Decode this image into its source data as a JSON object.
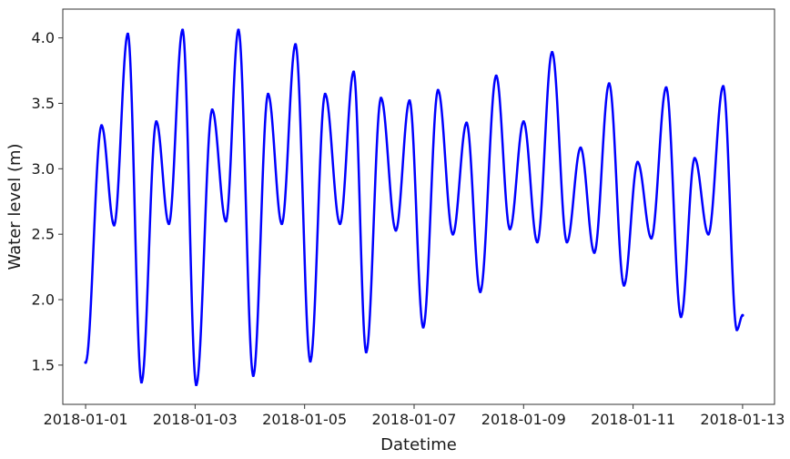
{
  "chart_data": {
    "type": "line",
    "xlabel": "Datetime",
    "ylabel": "Water level (m)",
    "xlim": [
      "2017-12-31T14:00",
      "2018-01-13T14:00"
    ],
    "ylim": [
      1.2,
      4.22
    ],
    "x_ticks": [
      "2018-01-01",
      "2018-01-03",
      "2018-01-05",
      "2018-01-07",
      "2018-01-09",
      "2018-01-11",
      "2018-01-13"
    ],
    "y_ticks": [
      1.5,
      2.0,
      2.5,
      3.0,
      3.5,
      4.0
    ],
    "grid": false,
    "series": [
      {
        "color": "#0000ff",
        "x": [
          "2018-01-01T00:00",
          "2018-01-01T07:00",
          "2018-01-01T12:30",
          "2018-01-01T18:30",
          "2018-01-02T00:30",
          "2018-01-02T07:00",
          "2018-01-02T12:30",
          "2018-01-02T18:30",
          "2018-01-03T00:30",
          "2018-01-03T07:30",
          "2018-01-03T13:30",
          "2018-01-03T19:00",
          "2018-01-04T01:30",
          "2018-01-04T08:00",
          "2018-01-04T14:00",
          "2018-01-04T20:00",
          "2018-01-05T02:30",
          "2018-01-05T09:00",
          "2018-01-05T15:30",
          "2018-01-05T21:30",
          "2018-01-06T03:00",
          "2018-01-06T09:30",
          "2018-01-06T16:00",
          "2018-01-06T22:00",
          "2018-01-07T04:00",
          "2018-01-07T10:30",
          "2018-01-07T17:00",
          "2018-01-07T23:00",
          "2018-01-08T05:00",
          "2018-01-08T12:00",
          "2018-01-08T18:00",
          "2018-01-09T00:00",
          "2018-01-09T06:00",
          "2018-01-09T12:30",
          "2018-01-09T19:00",
          "2018-01-10T01:00",
          "2018-01-10T07:00",
          "2018-01-10T13:30",
          "2018-01-10T20:00",
          "2018-01-11T02:00",
          "2018-01-11T08:00",
          "2018-01-11T14:30",
          "2018-01-11T21:00",
          "2018-01-12T03:00",
          "2018-01-12T09:00",
          "2018-01-12T15:30",
          "2018-01-12T21:30",
          "2018-01-13T00:00"
        ],
        "y": [
          1.52,
          3.33,
          2.57,
          4.03,
          1.37,
          3.36,
          2.58,
          4.06,
          1.35,
          3.45,
          2.6,
          4.06,
          1.42,
          3.57,
          2.58,
          3.95,
          1.53,
          3.57,
          2.58,
          3.74,
          1.6,
          3.54,
          2.53,
          3.52,
          1.79,
          3.6,
          2.5,
          3.35,
          2.06,
          3.71,
          2.54,
          3.36,
          2.44,
          3.89,
          2.44,
          3.16,
          2.36,
          3.65,
          2.11,
          3.05,
          2.47,
          3.62,
          1.87,
          3.08,
          2.5,
          3.63,
          1.77,
          1.88
        ]
      }
    ]
  }
}
